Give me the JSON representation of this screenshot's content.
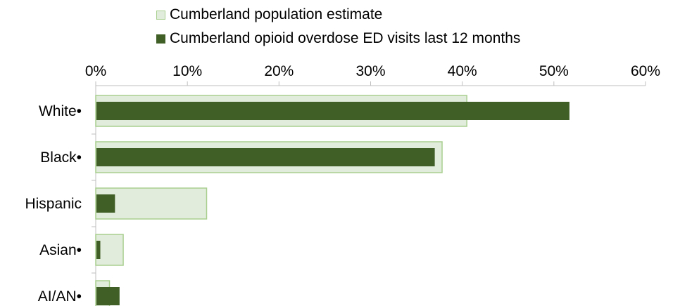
{
  "chart_data": {
    "type": "bar",
    "orientation": "horizontal",
    "categories": [
      "White•",
      "Black•",
      "Hispanic",
      "Asian•",
      "AI/AN•"
    ],
    "series": [
      {
        "name": "Cumberland population estimate",
        "values": [
          40.5,
          37.8,
          12.1,
          3.0,
          1.5
        ],
        "color": "#e2ecdc",
        "border": "#a9cf8f"
      },
      {
        "name": "Cumberland opioid overdose ED visits last 12 months",
        "values": [
          51.7,
          37.0,
          2.1,
          0.5,
          2.6
        ],
        "color": "#3f5f26"
      }
    ],
    "xlim": [
      0,
      60
    ],
    "xticks": [
      "0%",
      "10%",
      "20%",
      "30%",
      "40%",
      "50%",
      "60%"
    ],
    "tick_values": [
      0,
      10,
      20,
      30,
      40,
      50,
      60
    ],
    "axis_position": "top",
    "legend_position": "top-center",
    "grid": false
  }
}
